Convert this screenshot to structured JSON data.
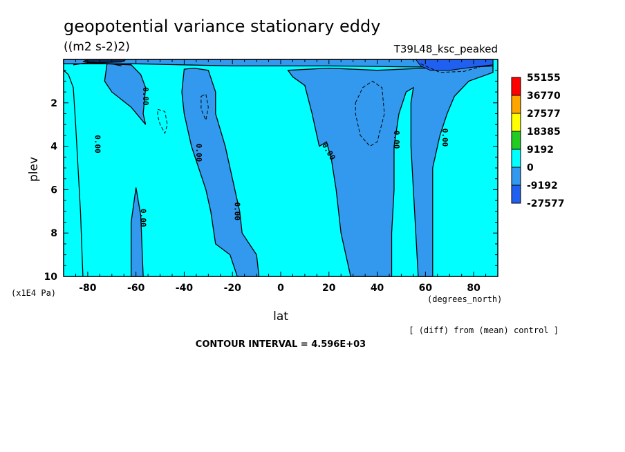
{
  "colors": {
    "level_0_to_9192": "#00ffff",
    "level_neg9192_to_0": "#3399ee",
    "level_neg27577_to_neg9192": "#1f60f0",
    "level_9192_to_18385": "#22cc22",
    "level_18385_to_27577": "#ffff00",
    "level_27577_to_36770": "#ffa500",
    "level_36770_to_55155": "#ff0000",
    "contour_line": "#000000"
  },
  "chart_data": {
    "type": "contour",
    "title": "geopotential variance stationary eddy",
    "units": "((m2 s-2)2)",
    "run_id": "T39L48_ksc_peaked",
    "xlabel": "lat",
    "x_unit": "(degrees_north)",
    "ylabel": "plev",
    "y_unit": "(x1E4 Pa)",
    "xlim": [
      -90,
      90
    ],
    "ylim": [
      10,
      0
    ],
    "x_ticks": [
      -80,
      -60,
      -40,
      -20,
      0,
      20,
      40,
      60,
      80
    ],
    "y_ticks": [
      2,
      4,
      6,
      8,
      10
    ],
    "note": "[ (diff) from (mean) control ]",
    "contour_interval": "CONTOUR INTERVAL = 4.596E+03",
    "contour_labels": [
      "0.00",
      "0.00",
      "0.00",
      "0.00",
      "0.00",
      "0.00",
      "0.00",
      "0.00",
      "0.00"
    ],
    "legend": {
      "placement": "right",
      "levels": [
        "55155",
        "36770",
        "27577",
        "18385",
        "9192",
        "0",
        "-9192",
        "-27577"
      ]
    },
    "negative_regions": [
      {
        "name": "sh-mid-band-upper",
        "points": [
          [
            -72,
            0.2
          ],
          [
            -62,
            0.25
          ],
          [
            -58,
            0.7
          ],
          [
            -56,
            1.3
          ],
          [
            -57,
            2.5
          ],
          [
            -56,
            3.0
          ],
          [
            -62,
            2.2
          ],
          [
            -70,
            1.5
          ],
          [
            -73,
            1.0
          ]
        ]
      },
      {
        "name": "sh-mid-band-lower",
        "points": [
          [
            -60,
            5.9
          ],
          [
            -58,
            7.2
          ],
          [
            -57,
            10
          ],
          [
            -62,
            10
          ],
          [
            -62,
            7.5
          ]
        ]
      },
      {
        "name": "sh-subtropics",
        "points": [
          [
            -40,
            0.45
          ],
          [
            -36,
            0.4
          ],
          [
            -30,
            0.5
          ],
          [
            -27,
            1.5
          ],
          [
            -27,
            2.5
          ],
          [
            -23,
            4.0
          ],
          [
            -20,
            5.5
          ],
          [
            -17,
            7.0
          ],
          [
            -16,
            8.0
          ],
          [
            -10,
            9.0
          ],
          [
            -9,
            10
          ],
          [
            -18,
            10
          ],
          [
            -21,
            9.0
          ],
          [
            -27,
            8.5
          ],
          [
            -29,
            7.0
          ],
          [
            -31,
            6.0
          ],
          [
            -37,
            4.0
          ],
          [
            -40,
            2.5
          ],
          [
            -41,
            1.5
          ]
        ]
      },
      {
        "name": "nh-broad",
        "points": [
          [
            3,
            0.5
          ],
          [
            20,
            0.4
          ],
          [
            40,
            0.5
          ],
          [
            60,
            0.4
          ],
          [
            80,
            0.35
          ],
          [
            88,
            0.3
          ],
          [
            88,
            0.6
          ],
          [
            78,
            1.0
          ],
          [
            72,
            1.7
          ],
          [
            69,
            2.5
          ],
          [
            66,
            3.5
          ],
          [
            63,
            5.0
          ],
          [
            63,
            10
          ],
          [
            57,
            10
          ],
          [
            56,
            8.0
          ],
          [
            55,
            6.0
          ],
          [
            54,
            4.0
          ],
          [
            54,
            2.0
          ],
          [
            55,
            1.3
          ],
          [
            52,
            1.5
          ],
          [
            49,
            2.5
          ],
          [
            47,
            4.0
          ],
          [
            47,
            6.0
          ],
          [
            46,
            8.0
          ],
          [
            46,
            10
          ],
          [
            29,
            10
          ],
          [
            25,
            8.0
          ],
          [
            23,
            6.0
          ],
          [
            21,
            4.6
          ],
          [
            19,
            3.8
          ],
          [
            16,
            4.0
          ],
          [
            13,
            2.5
          ],
          [
            10,
            1.2
          ],
          [
            5,
            0.8
          ],
          [
            3,
            0.5
          ]
        ]
      },
      {
        "name": "equator-top-strip",
        "points": [
          [
            -90,
            0
          ],
          [
            88,
            0
          ],
          [
            88,
            0.3
          ],
          [
            60,
            0.35
          ],
          [
            20,
            0.3
          ],
          [
            -20,
            0.3
          ],
          [
            -60,
            0.2
          ],
          [
            -90,
            0.2
          ]
        ]
      }
    ],
    "strong_negative_regions": [
      {
        "name": "nh-top-jet",
        "points": [
          [
            56,
            0
          ],
          [
            88,
            0
          ],
          [
            88,
            0.25
          ],
          [
            80,
            0.35
          ],
          [
            70,
            0.5
          ],
          [
            62,
            0.5
          ],
          [
            58,
            0.3
          ]
        ]
      }
    ],
    "dashed_contours": [
      {
        "name": "sh-small-1",
        "points": [
          [
            -51,
            2.3
          ],
          [
            -48,
            2.4
          ],
          [
            -47,
            3.0
          ],
          [
            -48,
            3.4
          ],
          [
            -50,
            3.0
          ],
          [
            -51,
            2.6
          ]
        ]
      },
      {
        "name": "sh-small-2",
        "points": [
          [
            -33,
            1.7
          ],
          [
            -31,
            1.6
          ],
          [
            -30,
            2.2
          ],
          [
            -31,
            2.8
          ],
          [
            -33,
            2.3
          ]
        ]
      },
      {
        "name": "nh-inner",
        "points": [
          [
            31,
            2.0
          ],
          [
            34,
            1.3
          ],
          [
            38,
            1.0
          ],
          [
            42,
            1.3
          ],
          [
            43,
            2.5
          ],
          [
            40,
            3.8
          ],
          [
            37,
            4.0
          ],
          [
            33,
            3.5
          ],
          [
            31,
            2.5
          ]
        ]
      },
      {
        "name": "nh-top-inner",
        "points": [
          [
            58,
            0.2
          ],
          [
            66,
            0.6
          ],
          [
            76,
            0.55
          ],
          [
            84,
            0.3
          ]
        ]
      }
    ],
    "solid_contours": [
      {
        "name": "sh-left-band",
        "points": [
          [
            -90,
            0.5
          ],
          [
            -88,
            0.7
          ],
          [
            -86,
            1.3
          ],
          [
            -85,
            3.0
          ],
          [
            -84,
            5.0
          ],
          [
            -83,
            7.0
          ],
          [
            -82,
            10
          ]
        ]
      },
      {
        "name": "sh-top-blob",
        "points": [
          [
            -86,
            0.25
          ],
          [
            -80,
            0.15
          ],
          [
            -70,
            0.2
          ],
          [
            -66,
            0.3
          ]
        ]
      }
    ]
  }
}
